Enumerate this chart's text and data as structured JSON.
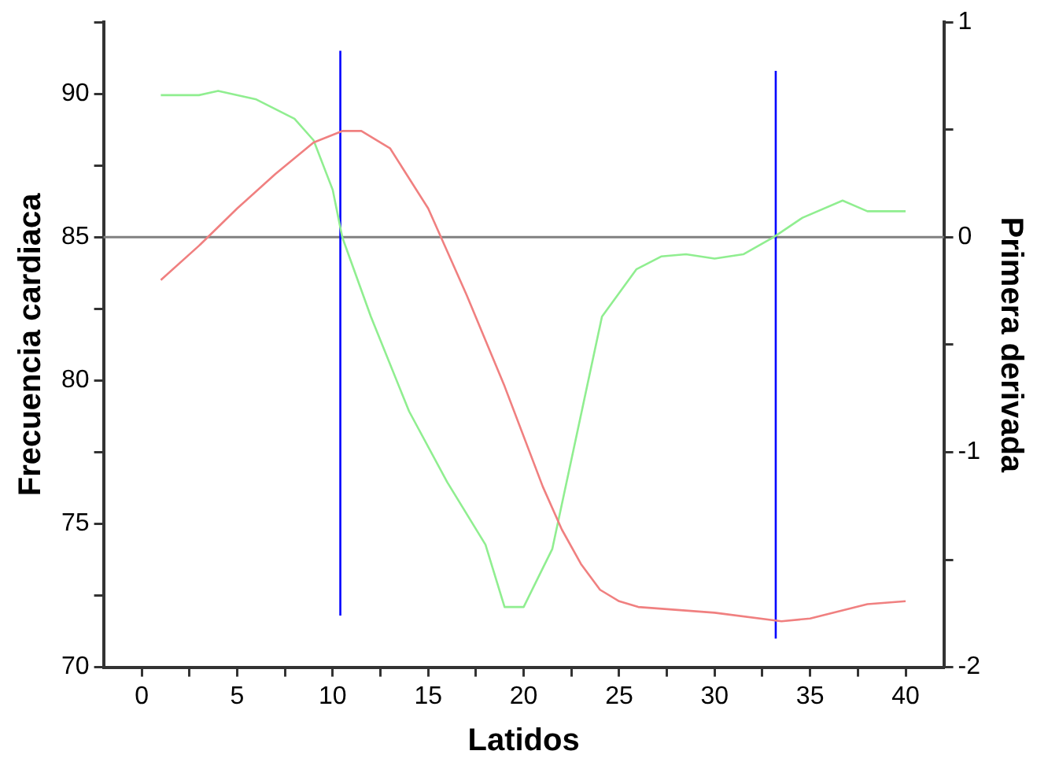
{
  "chart_data": {
    "type": "line",
    "xlabel": "Latidos",
    "ylabel": "Frecuencia cardiaca",
    "y2label": "Primera derivada",
    "xlim": [
      -2,
      42
    ],
    "xticks": [
      0,
      {
        "value": 2.5,
        "label": null
      },
      5,
      {
        "value": 7.5,
        "label": null
      },
      10,
      {
        "value": 12.5,
        "label": null
      },
      15,
      {
        "value": 17.5,
        "label": null
      },
      20,
      {
        "value": 22.5,
        "label": null
      },
      25,
      {
        "value": 27.5,
        "label": null
      },
      30,
      {
        "value": 32.5,
        "label": null
      },
      35,
      {
        "value": 37.5,
        "label": null
      },
      40
    ],
    "ylim": [
      70,
      92.5
    ],
    "yticks": [
      70,
      {
        "value": 72.5,
        "label": null
      },
      75,
      {
        "value": 77.5,
        "label": null
      },
      80,
      {
        "value": 82.5,
        "label": null
      },
      85,
      {
        "value": 87.5,
        "label": null
      },
      90,
      {
        "value": 92.5,
        "label": null
      }
    ],
    "y2lim": [
      -2,
      1
    ],
    "y2ticks": [
      -2,
      {
        "value": -1.5,
        "label": null
      },
      -1,
      {
        "value": -0.5,
        "label": null
      },
      0,
      {
        "value": 0.5,
        "label": null
      },
      1
    ],
    "grid": false,
    "legend": false,
    "marker": "none",
    "line_style": "solid",
    "ref_lines": [
      {
        "axis": "y",
        "value": 85,
        "color": "#808080"
      }
    ],
    "series": [
      {
        "color": "#f08080",
        "x": [
          1,
          3,
          5,
          7,
          9,
          10.5,
          11.5,
          13,
          15,
          17,
          19,
          21,
          22,
          23,
          24,
          25,
          26,
          30,
          33.5,
          35,
          38,
          40
        ],
        "values": [
          83.5,
          84.7,
          86.0,
          87.2,
          88.3,
          88.7,
          88.7,
          88.1,
          86.0,
          83.0,
          79.8,
          76.3,
          74.8,
          73.6,
          72.7,
          72.3,
          72.1,
          71.9,
          71.6,
          71.7,
          72.2,
          72.3
        ]
      },
      {
        "color": "#90ee90",
        "axis": "y2",
        "x": [
          1,
          3,
          4,
          6,
          8,
          9,
          10,
          10.5,
          12,
          14,
          16,
          18,
          19,
          20,
          21,
          21.5,
          24.1,
          25.9,
          27.2,
          28.5,
          30,
          31.5,
          33.1,
          34.6,
          36.7,
          38,
          40
        ],
        "values": [
          0.66,
          0.66,
          0.68,
          0.64,
          0.55,
          0.45,
          0.22,
          0,
          -0.37,
          -0.81,
          -1.14,
          -1.43,
          -1.72,
          -1.72,
          -1.54,
          -1.45,
          -0.37,
          -0.15,
          -0.09,
          -0.08,
          -0.1,
          -0.08,
          0,
          0.09,
          0.17,
          0.12,
          0.12
        ]
      },
      {
        "color": "#0000ff",
        "x": [
          10.4,
          10.4
        ],
        "values": [
          71.8,
          91.5
        ]
      },
      {
        "color": "#0000ff",
        "x": [
          33.2,
          33.2
        ],
        "values": [
          71,
          90.8
        ]
      }
    ]
  }
}
